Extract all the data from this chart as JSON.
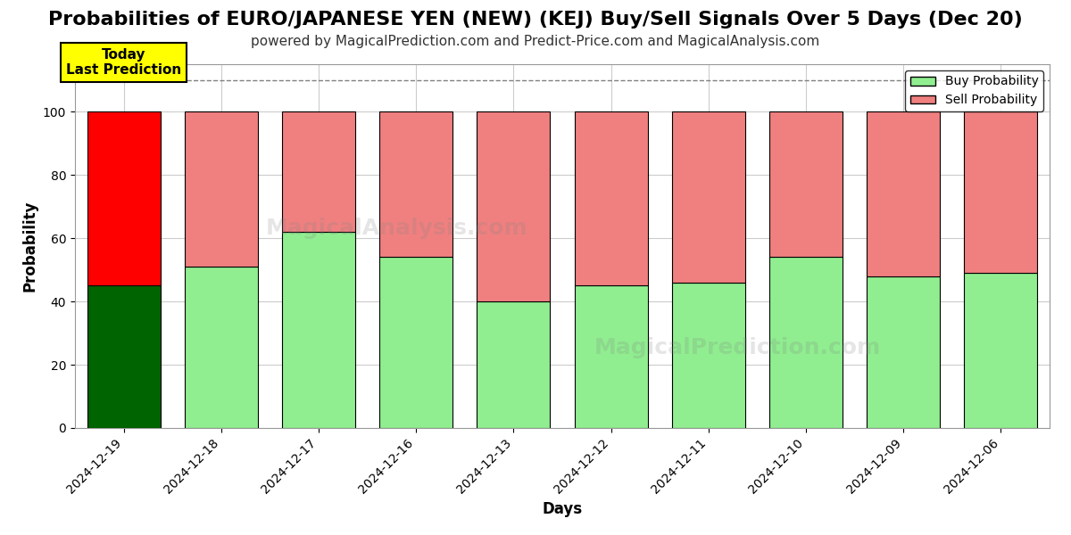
{
  "title": "Probabilities of EURO/JAPANESE YEN (NEW) (KEJ) Buy/Sell Signals Over 5 Days (Dec 20)",
  "subtitle": "powered by MagicalPrediction.com and Predict-Price.com and MagicalAnalysis.com",
  "xlabel": "Days",
  "ylabel": "Probability",
  "categories": [
    "2024-12-19",
    "2024-12-18",
    "2024-12-17",
    "2024-12-16",
    "2024-12-13",
    "2024-12-12",
    "2024-12-11",
    "2024-12-10",
    "2024-12-09",
    "2024-12-06"
  ],
  "buy_values": [
    45,
    51,
    62,
    54,
    40,
    45,
    46,
    54,
    48,
    49
  ],
  "sell_values": [
    55,
    49,
    38,
    46,
    60,
    55,
    54,
    46,
    52,
    51
  ],
  "today_buy_color": "#006400",
  "today_sell_color": "#ff0000",
  "buy_color": "#90EE90",
  "sell_color": "#F08080",
  "bar_edge_color": "#000000",
  "ylim": [
    0,
    115
  ],
  "yticks": [
    0,
    20,
    40,
    60,
    80,
    100
  ],
  "dashed_line_y": 110,
  "background_color": "#ffffff",
  "grid_color": "#cccccc",
  "title_fontsize": 16,
  "subtitle_fontsize": 11,
  "legend_labels": [
    "Buy Probability",
    "Sell Probability"
  ]
}
